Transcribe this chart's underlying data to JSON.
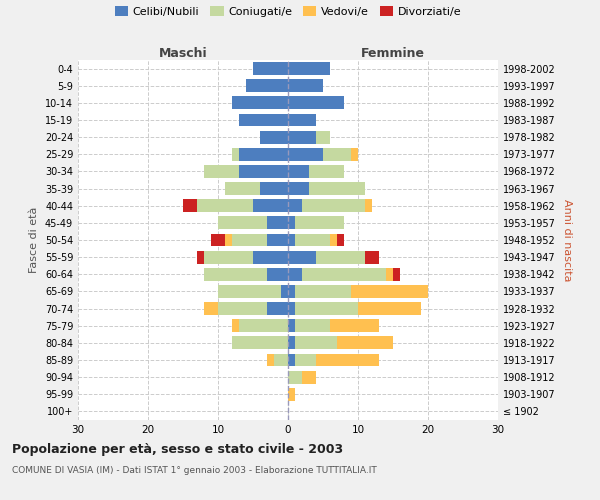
{
  "age_groups": [
    "100+",
    "95-99",
    "90-94",
    "85-89",
    "80-84",
    "75-79",
    "70-74",
    "65-69",
    "60-64",
    "55-59",
    "50-54",
    "45-49",
    "40-44",
    "35-39",
    "30-34",
    "25-29",
    "20-24",
    "15-19",
    "10-14",
    "5-9",
    "0-4"
  ],
  "birth_years": [
    "≤ 1902",
    "1903-1907",
    "1908-1912",
    "1913-1917",
    "1918-1922",
    "1923-1927",
    "1928-1932",
    "1933-1937",
    "1938-1942",
    "1943-1947",
    "1948-1952",
    "1953-1957",
    "1958-1962",
    "1963-1967",
    "1968-1972",
    "1973-1977",
    "1978-1982",
    "1983-1987",
    "1988-1992",
    "1993-1997",
    "1998-2002"
  ],
  "maschi": {
    "celibi": [
      0,
      0,
      0,
      0,
      0,
      0,
      3,
      1,
      3,
      5,
      3,
      3,
      5,
      4,
      7,
      7,
      4,
      7,
      8,
      6,
      5
    ],
    "coniugati": [
      0,
      0,
      0,
      2,
      8,
      7,
      7,
      9,
      9,
      7,
      5,
      7,
      8,
      5,
      5,
      1,
      0,
      0,
      0,
      0,
      0
    ],
    "vedovi": [
      0,
      0,
      0,
      1,
      0,
      1,
      2,
      0,
      0,
      0,
      1,
      0,
      0,
      0,
      0,
      0,
      0,
      0,
      0,
      0,
      0
    ],
    "divorziati": [
      0,
      0,
      0,
      0,
      0,
      0,
      0,
      0,
      0,
      1,
      2,
      0,
      2,
      0,
      0,
      0,
      0,
      0,
      0,
      0,
      0
    ]
  },
  "femmine": {
    "nubili": [
      0,
      0,
      0,
      1,
      1,
      1,
      1,
      1,
      2,
      4,
      1,
      1,
      2,
      3,
      3,
      5,
      4,
      4,
      8,
      5,
      6
    ],
    "coniugate": [
      0,
      0,
      2,
      3,
      6,
      5,
      9,
      8,
      12,
      7,
      5,
      7,
      9,
      8,
      5,
      4,
      2,
      0,
      0,
      0,
      0
    ],
    "vedove": [
      0,
      1,
      2,
      9,
      8,
      7,
      9,
      11,
      1,
      0,
      1,
      0,
      1,
      0,
      0,
      1,
      0,
      0,
      0,
      0,
      0
    ],
    "divorziate": [
      0,
      0,
      0,
      0,
      0,
      0,
      0,
      0,
      1,
      2,
      1,
      0,
      0,
      0,
      0,
      0,
      0,
      0,
      0,
      0,
      0
    ]
  },
  "colors": {
    "celibi": "#4d7ebf",
    "coniugati": "#c5d9a0",
    "vedovi": "#ffc050",
    "divorziati": "#cc2222"
  },
  "xlim": 30,
  "title": "Popolazione per età, sesso e stato civile - 2003",
  "subtitle": "COMUNE DI VASIA (IM) - Dati ISTAT 1° gennaio 2003 - Elaborazione TUTTITALIA.IT",
  "ylabel_left": "Fasce di età",
  "ylabel_right": "Anni di nascita",
  "xlabel_left": "Maschi",
  "xlabel_right": "Femmine",
  "bg_color": "#f0f0f0",
  "plot_bg": "#ffffff"
}
